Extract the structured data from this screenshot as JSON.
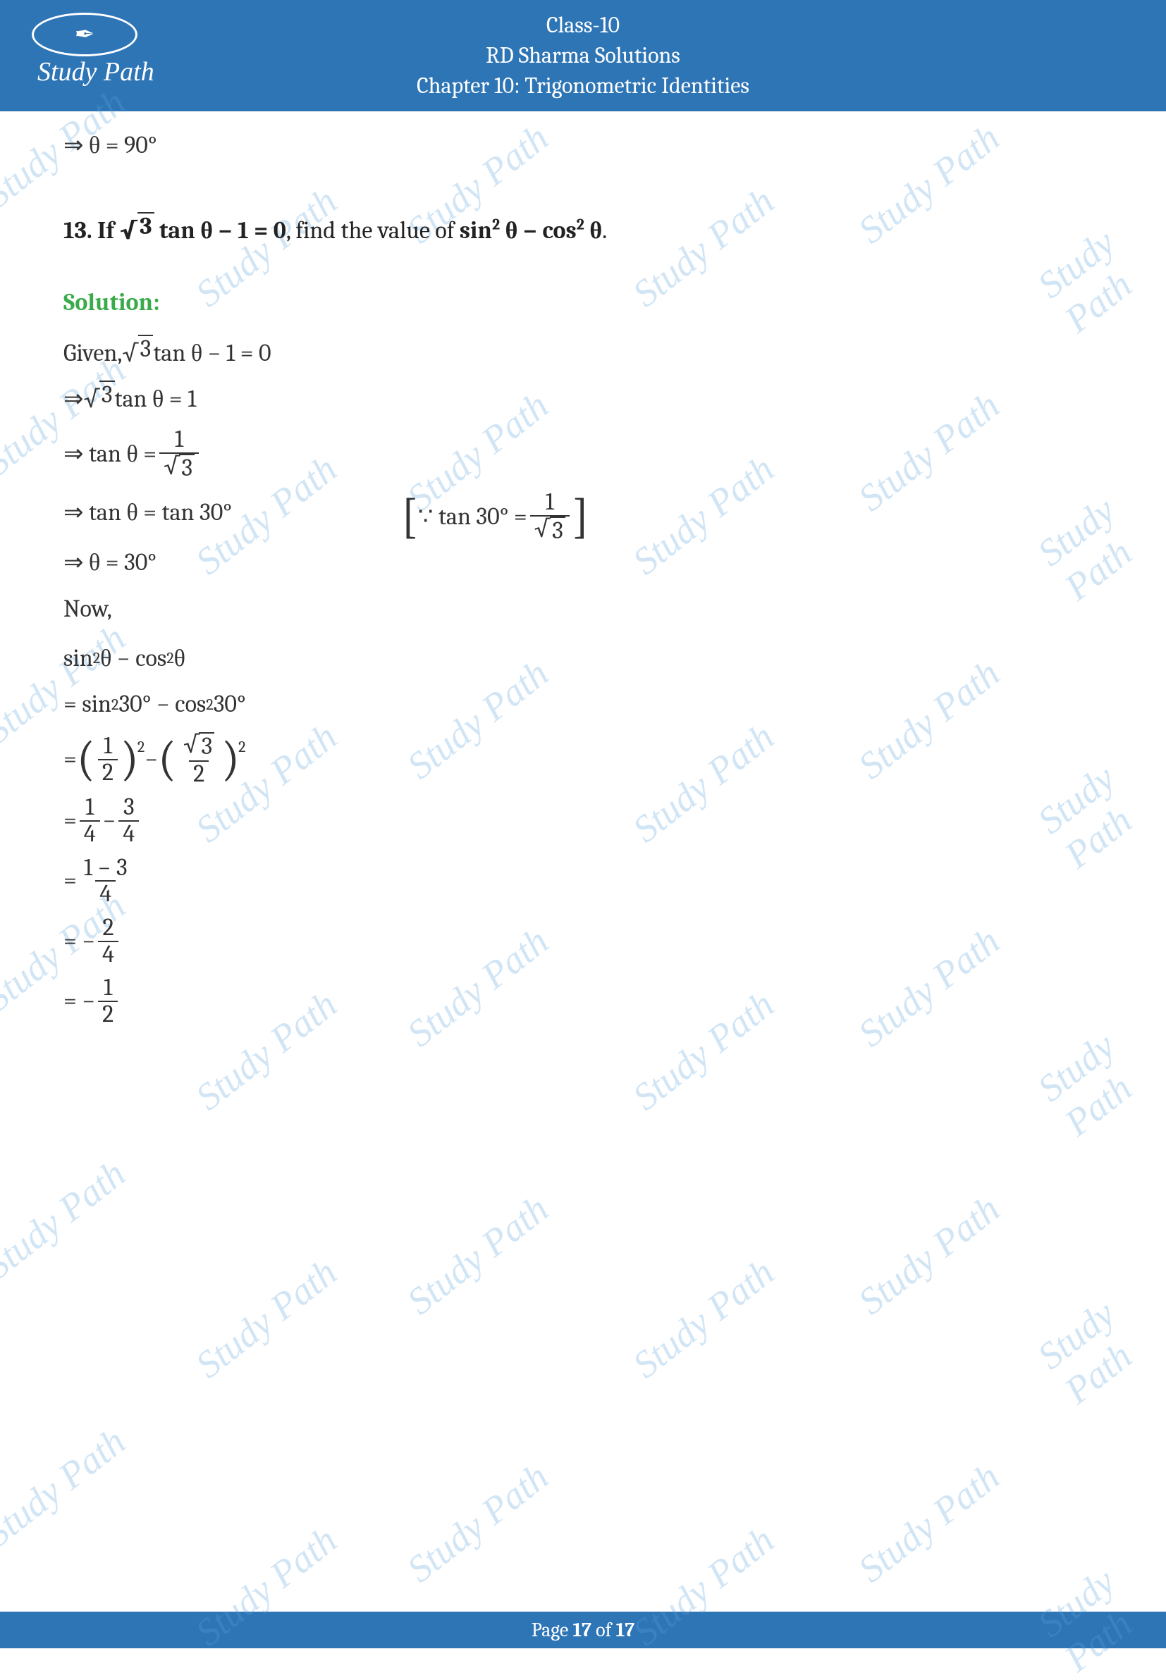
{
  "header": {
    "line1": "Class-10",
    "line2": "RD Sharma Solutions",
    "line3": "Chapter 10: Trigonometric Identities",
    "logo_text": "Study Path"
  },
  "prev": {
    "theta_90": "⇒ θ = 90°"
  },
  "q13": {
    "number": "13.",
    "prefix": "If ",
    "eq_lhs": "3",
    "eq_mid": " tan θ − 1 = 0",
    "suffix": ", find the value of ",
    "target": "sin",
    "target2": " θ − cos",
    "target3": " θ",
    "period": "."
  },
  "solution_label": "Solution:",
  "sol": {
    "given_prefix": "Given, ",
    "given_sqrt": "3",
    "given_rest": " tan θ − 1 = 0",
    "l2_sqrt": "3",
    "l2_rest": " tan θ = 1",
    "l3_lhs": "⇒ tan θ = ",
    "l3_num": "1",
    "l3_den_sqrt": "3",
    "l4": "⇒ tan θ = tan 30°",
    "note_prefix": "∵ tan 30° = ",
    "note_num": "1",
    "note_den_sqrt": "3",
    "l5": "⇒ θ = 30°",
    "now": "Now,",
    "e1": "sin",
    "e1b": " θ − cos",
    "e1c": " θ",
    "e2": "= sin",
    "e2b": " 30° − cos",
    "e2c": " 30°",
    "e3_f1_num": "1",
    "e3_f1_den": "2",
    "e3_f2_num_sqrt": "3",
    "e3_f2_den": "2",
    "e4_n1": "1",
    "e4_d1": "4",
    "e4_n2": "3",
    "e4_d2": "4",
    "e5_num": "1 − 3",
    "e5_den": "4",
    "e6_num": "2",
    "e6_den": "4",
    "e7_num": "1",
    "e7_den": "2"
  },
  "footer": {
    "text_prefix": "Page ",
    "current": "17",
    "mid": " of ",
    "total": "17"
  },
  "watermark_text": "Study Path",
  "colors": {
    "brand": "#2e75b6",
    "solution_green": "#3aab4a",
    "watermark": "rgba(90,160,220,0.28)"
  }
}
